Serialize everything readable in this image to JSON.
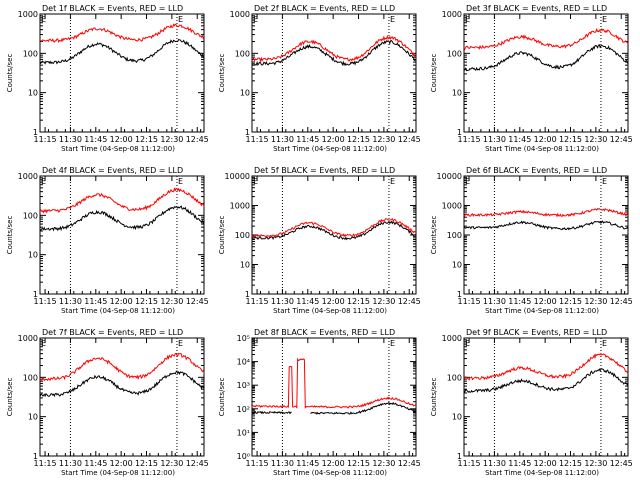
{
  "colors": {
    "events": "#000000",
    "lld": "#ff0000",
    "background": "#ffffff",
    "axes": "#000000"
  },
  "x_axis_label": "Start Time (04-Sep-08 11:12:00)",
  "y_axis_label": "Counts/sec",
  "x_tick_labels": [
    "11:15",
    "11:30",
    "11:45",
    "12:00",
    "12:15",
    "12:30",
    "12:45"
  ],
  "chart_data": [
    {
      "type": "line",
      "title": "Det 1f BLACK = Events, RED = LLD",
      "log_y": true,
      "ylim": [
        1,
        1000
      ],
      "y_tick_labels": [
        "1",
        "10",
        "100",
        "1000"
      ],
      "x_minutes": [
        3,
        18,
        33,
        48,
        63,
        78,
        93
      ],
      "xlim_minutes": [
        0,
        97
      ],
      "vlines_minutes": [
        18,
        81
      ],
      "edge_markers": [
        "E",
        "E"
      ],
      "series": [
        {
          "name": "Events",
          "color": "#000000",
          "peaks": [
            {
              "t": 34,
              "v": 170
            },
            {
              "t": 81,
              "v": 210
            }
          ],
          "base": 58,
          "end": 65
        },
        {
          "name": "LLD",
          "color": "#ff0000",
          "peaks": [
            {
              "t": 34,
              "v": 420
            },
            {
              "t": 81,
              "v": 510
            }
          ],
          "base": 210,
          "end": 220
        }
      ]
    },
    {
      "type": "line",
      "title": "Det 2f BLACK = Events, RED = LLD",
      "log_y": true,
      "ylim": [
        1,
        1000
      ],
      "y_tick_labels": [
        "1",
        "10",
        "100",
        "1000"
      ],
      "x_minutes": [
        3,
        18,
        33,
        48,
        63,
        78,
        93
      ],
      "xlim_minutes": [
        0,
        97
      ],
      "vlines_minutes": [
        18,
        81
      ],
      "edge_markers": [
        "E",
        "E"
      ],
      "series": [
        {
          "name": "Events",
          "color": "#000000",
          "peaks": [
            {
              "t": 34,
              "v": 150
            },
            {
              "t": 81,
              "v": 200
            }
          ],
          "base": 55,
          "end": 50
        },
        {
          "name": "LLD",
          "color": "#ff0000",
          "peaks": [
            {
              "t": 34,
              "v": 200
            },
            {
              "t": 81,
              "v": 260
            }
          ],
          "base": 70,
          "end": 65
        }
      ]
    },
    {
      "type": "line",
      "title": "Det 3f BLACK = Events, RED = LLD",
      "log_y": true,
      "ylim": [
        1,
        1000
      ],
      "y_tick_labels": [
        "1",
        "10",
        "100",
        "1000"
      ],
      "x_minutes": [
        3,
        18,
        33,
        48,
        63,
        78,
        93
      ],
      "xlim_minutes": [
        0,
        97
      ],
      "vlines_minutes": [
        18,
        81
      ],
      "edge_markers": [
        "E",
        "E"
      ],
      "series": [
        {
          "name": "Events",
          "color": "#000000",
          "peaks": [
            {
              "t": 34,
              "v": 100
            },
            {
              "t": 81,
              "v": 150
            }
          ],
          "base": 40,
          "end": 45
        },
        {
          "name": "LLD",
          "color": "#ff0000",
          "peaks": [
            {
              "t": 34,
              "v": 260
            },
            {
              "t": 81,
              "v": 380
            }
          ],
          "base": 140,
          "end": 150
        }
      ]
    },
    {
      "type": "line",
      "title": "Det 4f BLACK = Events, RED = LLD",
      "log_y": true,
      "ylim": [
        1,
        1000
      ],
      "y_tick_labels": [
        "1",
        "10",
        "100",
        "1000"
      ],
      "x_minutes": [
        3,
        18,
        33,
        48,
        63,
        78,
        93
      ],
      "xlim_minutes": [
        0,
        97
      ],
      "vlines_minutes": [
        18,
        81
      ],
      "edge_markers": [
        "E",
        "E"
      ],
      "series": [
        {
          "name": "Events",
          "color": "#000000",
          "peaks": [
            {
              "t": 34,
              "v": 120
            },
            {
              "t": 81,
              "v": 160
            }
          ],
          "base": 45,
          "end": 50
        },
        {
          "name": "LLD",
          "color": "#ff0000",
          "peaks": [
            {
              "t": 34,
              "v": 330
            },
            {
              "t": 81,
              "v": 440
            }
          ],
          "base": 130,
          "end": 140
        }
      ]
    },
    {
      "type": "line",
      "title": "Det 5f BLACK = Events, RED = LLD",
      "log_y": true,
      "ylim": [
        1,
        10000
      ],
      "y_tick_labels": [
        "1",
        "10",
        "100",
        "1000",
        "10000"
      ],
      "x_minutes": [
        3,
        18,
        33,
        48,
        63,
        78,
        93
      ],
      "xlim_minutes": [
        0,
        97
      ],
      "vlines_minutes": [
        18,
        81
      ],
      "edge_markers": [
        "E",
        "E"
      ],
      "series": [
        {
          "name": "Events",
          "color": "#000000",
          "peaks": [
            {
              "t": 34,
              "v": 200
            },
            {
              "t": 81,
              "v": 280
            }
          ],
          "base": 80,
          "end": 70
        },
        {
          "name": "LLD",
          "color": "#ff0000",
          "peaks": [
            {
              "t": 34,
              "v": 260
            },
            {
              "t": 81,
              "v": 340
            }
          ],
          "base": 95,
          "end": 90
        }
      ]
    },
    {
      "type": "line",
      "title": "Det 6f BLACK = Events, RED = LLD",
      "log_y": true,
      "ylim": [
        1,
        10000
      ],
      "y_tick_labels": [
        "1",
        "10",
        "100",
        "1000",
        "10000"
      ],
      "x_minutes": [
        3,
        18,
        33,
        48,
        63,
        78,
        93
      ],
      "xlim_minutes": [
        0,
        97
      ],
      "vlines_minutes": [
        18,
        81
      ],
      "edge_markers": [
        "E",
        "E"
      ],
      "series": [
        {
          "name": "Events",
          "color": "#000000",
          "peaks": [
            {
              "t": 34,
              "v": 280
            },
            {
              "t": 81,
              "v": 300
            }
          ],
          "base": 180,
          "end": 150
        },
        {
          "name": "LLD",
          "color": "#ff0000",
          "peaks": [
            {
              "t": 34,
              "v": 620
            },
            {
              "t": 81,
              "v": 750
            }
          ],
          "base": 480,
          "end": 460
        }
      ]
    },
    {
      "type": "line",
      "title": "Det 7f BLACK = Events, RED = LLD",
      "log_y": true,
      "ylim": [
        1,
        1000
      ],
      "y_tick_labels": [
        "1",
        "10",
        "100",
        "1000"
      ],
      "x_minutes": [
        3,
        18,
        33,
        48,
        63,
        78,
        93
      ],
      "xlim_minutes": [
        0,
        97
      ],
      "vlines_minutes": [
        18,
        81
      ],
      "edge_markers": [
        "E",
        "E"
      ],
      "series": [
        {
          "name": "Events",
          "color": "#000000",
          "peaks": [
            {
              "t": 34,
              "v": 100
            },
            {
              "t": 81,
              "v": 130
            }
          ],
          "base": 35,
          "end": 40
        },
        {
          "name": "LLD",
          "color": "#ff0000",
          "peaks": [
            {
              "t": 34,
              "v": 300
            },
            {
              "t": 81,
              "v": 370
            }
          ],
          "base": 90,
          "end": 100
        }
      ]
    },
    {
      "type": "line",
      "title": "Det 8f BLACK = Events, RED = LLD",
      "log_y": true,
      "ylim": [
        1,
        100000
      ],
      "y_tick_labels": [
        "10⁰",
        "10¹",
        "10²",
        "10³",
        "10⁴",
        "10⁵"
      ],
      "x_minutes": [
        3,
        18,
        33,
        48,
        63,
        78,
        93
      ],
      "xlim_minutes": [
        0,
        97
      ],
      "vlines_minutes": [
        18,
        81
      ],
      "edge_markers": [
        "E",
        "E"
      ],
      "series": [
        {
          "name": "Events",
          "color": "#000000",
          "peaks": [
            {
              "t": 81,
              "v": 180
            }
          ],
          "base": 70,
          "end": 60,
          "gap": [
            24,
            34
          ]
        },
        {
          "name": "LLD",
          "color": "#ff0000",
          "peaks": [
            {
              "t": 81,
              "v": 300
            }
          ],
          "base": 130,
          "end": 110,
          "spikes": [
            {
              "t0": 22,
              "t1": 23.5,
              "v": 6000
            },
            {
              "t0": 27,
              "t1": 31,
              "v": 12000
            }
          ]
        }
      ]
    },
    {
      "type": "line",
      "title": "Det 9f BLACK = Events, RED = LLD",
      "log_y": true,
      "ylim": [
        1,
        1000
      ],
      "y_tick_labels": [
        "1",
        "10",
        "100",
        "1000"
      ],
      "x_minutes": [
        3,
        18,
        33,
        48,
        63,
        78,
        93
      ],
      "xlim_minutes": [
        0,
        97
      ],
      "vlines_minutes": [
        18,
        81
      ],
      "edge_markers": [
        "E",
        "E"
      ],
      "series": [
        {
          "name": "Events",
          "color": "#000000",
          "peaks": [
            {
              "t": 34,
              "v": 80
            },
            {
              "t": 81,
              "v": 150
            }
          ],
          "base": 45,
          "end": 50
        },
        {
          "name": "LLD",
          "color": "#ff0000",
          "peaks": [
            {
              "t": 34,
              "v": 170
            },
            {
              "t": 81,
              "v": 360
            }
          ],
          "base": 95,
          "end": 105
        }
      ]
    }
  ]
}
